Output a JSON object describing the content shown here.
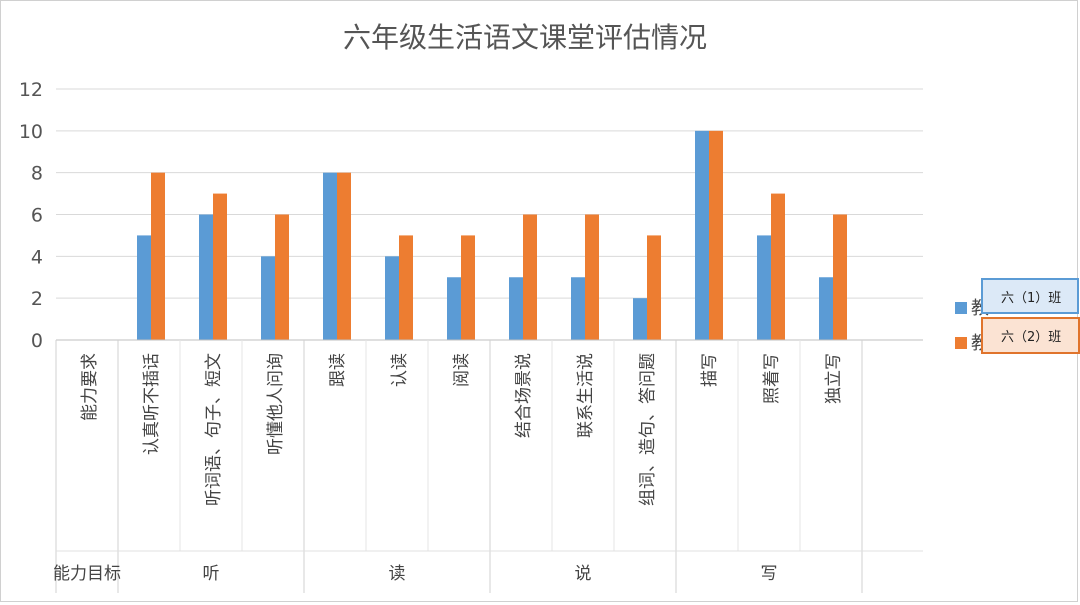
{
  "chart_data": {
    "type": "bar",
    "title": "六年级生活语文课堂评估情况",
    "ylim": [
      0,
      12
    ],
    "yticks": [
      0,
      2,
      4,
      6,
      8,
      10,
      12
    ],
    "grid": true,
    "legend_position": "right",
    "categories": [
      "能力要求",
      "认真听不插话",
      "听词语、句子、短文",
      "听懂他人问询",
      "跟读",
      "认读",
      "阅读",
      "结合场景说",
      "联系生活说",
      "组词、造句、答问题",
      "描写",
      "照着写",
      "独立写"
    ],
    "groups": [
      {
        "label": "能力目标",
        "span": 1
      },
      {
        "label": "听",
        "span": 3
      },
      {
        "label": "读",
        "span": 3
      },
      {
        "label": "说",
        "span": 3
      },
      {
        "label": "写",
        "span": 3
      }
    ],
    "series": [
      {
        "name": "六（1）班",
        "color": "#5b9bd5",
        "values": [
          null,
          5,
          6,
          4,
          8,
          4,
          3,
          3,
          3,
          2,
          10,
          5,
          3
        ]
      },
      {
        "name": "六（2）班",
        "color": "#ed7d31",
        "values": [
          null,
          8,
          7,
          6,
          8,
          5,
          5,
          6,
          6,
          5,
          10,
          7,
          6
        ]
      }
    ],
    "legend_partial_glyph": "教"
  }
}
